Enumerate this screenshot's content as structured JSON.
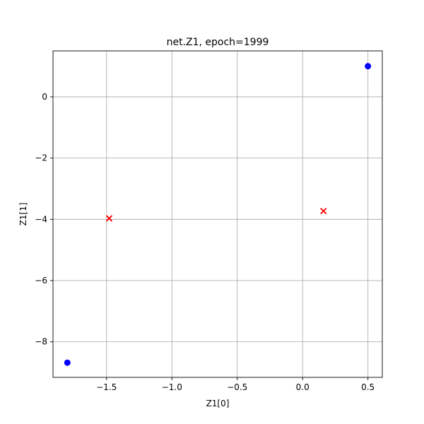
{
  "chart_data": {
    "type": "scatter",
    "title": "net.Z1, epoch=1999",
    "xlabel": "Z1[0]",
    "ylabel": "Z1[1]",
    "xlim": [
      -1.91,
      0.61
    ],
    "ylim": [
      -9.16,
      1.5
    ],
    "xticks": [
      -1.5,
      -1.0,
      -0.5,
      0.0,
      0.5
    ],
    "xtick_labels": [
      "−1.5",
      "−1.0",
      "−0.5",
      "0.0",
      "0.5"
    ],
    "yticks": [
      0,
      -2,
      -4,
      -6,
      -8
    ],
    "ytick_labels": [
      "0",
      "−2",
      "−4",
      "−6",
      "−8"
    ],
    "grid": true,
    "series": [
      {
        "marker": "circle",
        "color": "#0000ff",
        "points": [
          [
            0.5,
            1.0
          ],
          [
            -1.8,
            -8.68
          ]
        ]
      },
      {
        "marker": "x",
        "color": "#ff0000",
        "points": [
          [
            -1.48,
            -3.97
          ],
          [
            0.16,
            -3.73
          ]
        ]
      }
    ]
  }
}
